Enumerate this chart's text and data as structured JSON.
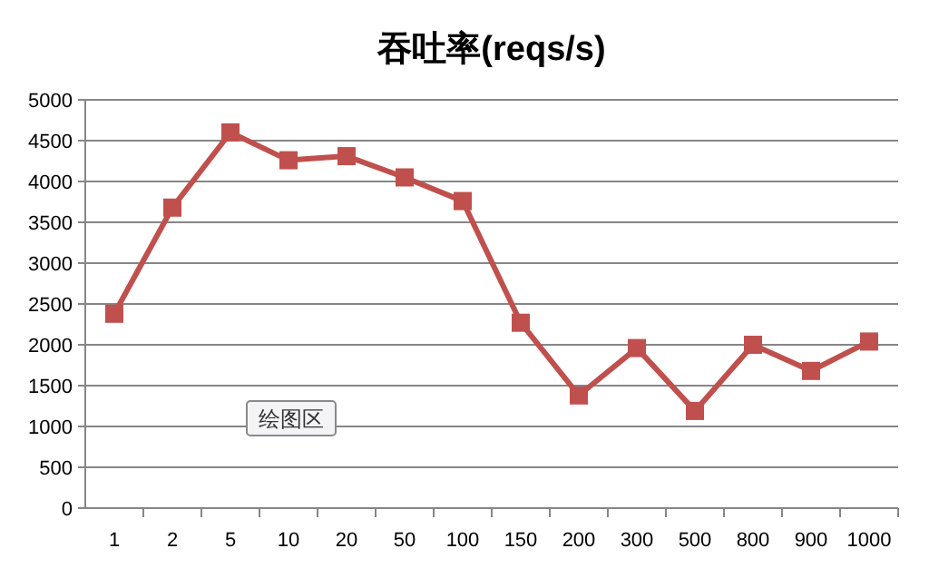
{
  "chart_data": {
    "type": "line",
    "title": "吞吐率(reqs/s)",
    "categories": [
      "1",
      "2",
      "5",
      "10",
      "20",
      "50",
      "100",
      "150",
      "200",
      "300",
      "500",
      "800",
      "900",
      "1000"
    ],
    "series": [
      {
        "color": "#c0504d",
        "values": [
          2380,
          3680,
          4600,
          4260,
          4310,
          4050,
          3760,
          2270,
          1380,
          1960,
          1190,
          2000,
          1680,
          2040
        ]
      }
    ],
    "ylim": [
      0,
      5000
    ],
    "yticks": [
      0,
      500,
      1000,
      1500,
      2000,
      2500,
      3000,
      3500,
      4000,
      4500,
      5000
    ],
    "grid": "y",
    "marker": "square",
    "line_style": "solid",
    "annotations": [
      "绘图区"
    ]
  }
}
